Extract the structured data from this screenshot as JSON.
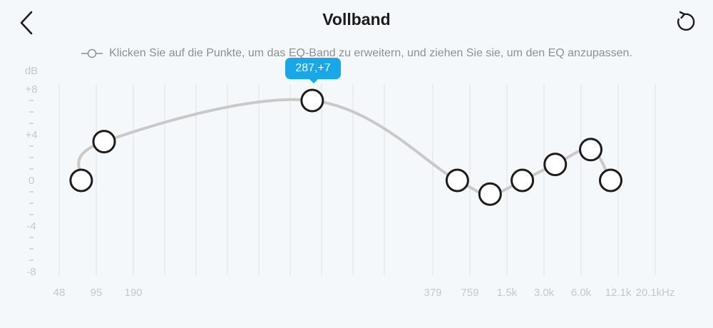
{
  "header": {
    "title": "Vollband",
    "back_icon": "chevron-left-icon",
    "reset_icon": "reset-icon"
  },
  "hint": {
    "text": "Klicken Sie auf die Punkte, um das EQ-Band zu erweitern, und ziehen Sie sie, um den EQ anzupassen.",
    "icon": "slider-toggle-icon"
  },
  "tooltip": {
    "text": "287,+7"
  },
  "chart_data": {
    "type": "line",
    "ylabel": "dB",
    "xlabel": "",
    "ylim": [
      -8,
      8
    ],
    "y_ticks": [
      "+8",
      "+4",
      "0",
      "-4",
      "-8"
    ],
    "x_tick_labels": [
      "48",
      "95",
      "190",
      "379",
      "759",
      "1.5k",
      "3.0k",
      "6.0k",
      "12.1k",
      "20.1kHz"
    ],
    "grid": true,
    "colors": {
      "curve": "#c9c9c9",
      "grid": "#dfe2e6",
      "point_stroke": "#1c1c1c",
      "point_fill": "#ffffff",
      "tooltip": "#1aa7e8",
      "axis_text": "#c4c7cc"
    },
    "points": [
      {
        "freq": 72,
        "gain": 0
      },
      {
        "freq": 110,
        "gain": 3.4
      },
      {
        "freq": 287,
        "gain": 7
      },
      {
        "freq": 600,
        "gain": 0
      },
      {
        "freq": 1100,
        "gain": -1.2
      },
      {
        "freq": 2000,
        "gain": 0
      },
      {
        "freq": 3700,
        "gain": 1.4
      },
      {
        "freq": 7200,
        "gain": 2.7
      },
      {
        "freq": 10500,
        "gain": 0
      }
    ],
    "selected_index": 2
  }
}
